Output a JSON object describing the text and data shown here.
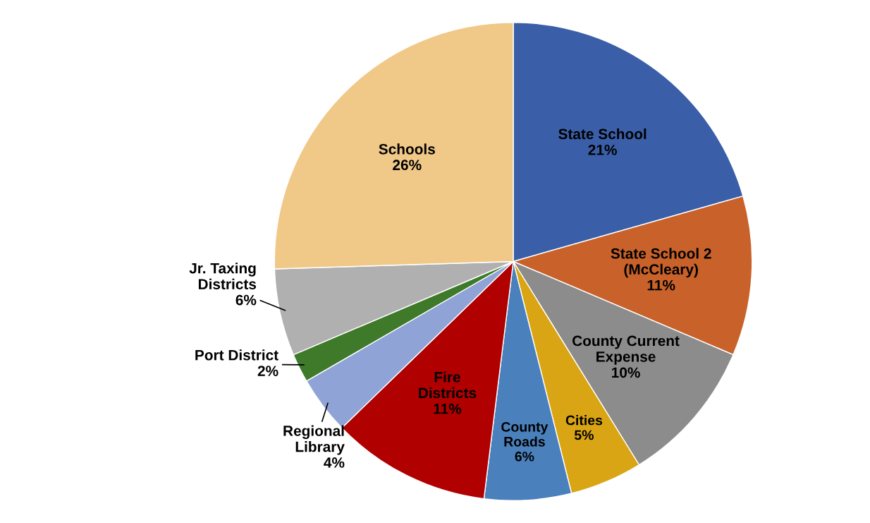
{
  "chart_data": {
    "type": "pie",
    "categories": [
      "State School",
      "State School 2\n(McCleary)",
      "County Current\nExpense",
      "Cities",
      "County\nRoads",
      "Fire\nDistricts",
      "Regional\nLibrary",
      "Port District",
      "Jr. Taxing\nDistricts",
      "Schools"
    ],
    "values": [
      21,
      11,
      10,
      5,
      6,
      11,
      4,
      2,
      6,
      26
    ],
    "value_labels": [
      "21%",
      "11%",
      "10%",
      "5%",
      "6%",
      "11%",
      "4%",
      "2%",
      "6%",
      "26%"
    ],
    "colors": [
      "#3a5fa8",
      "#c8622a",
      "#8c8c8c",
      "#d9a514",
      "#4a80bb",
      "#b00000",
      "#8fa3d6",
      "#3f7a2a",
      "#b0b0b0",
      "#f0c888"
    ],
    "legend": false
  }
}
